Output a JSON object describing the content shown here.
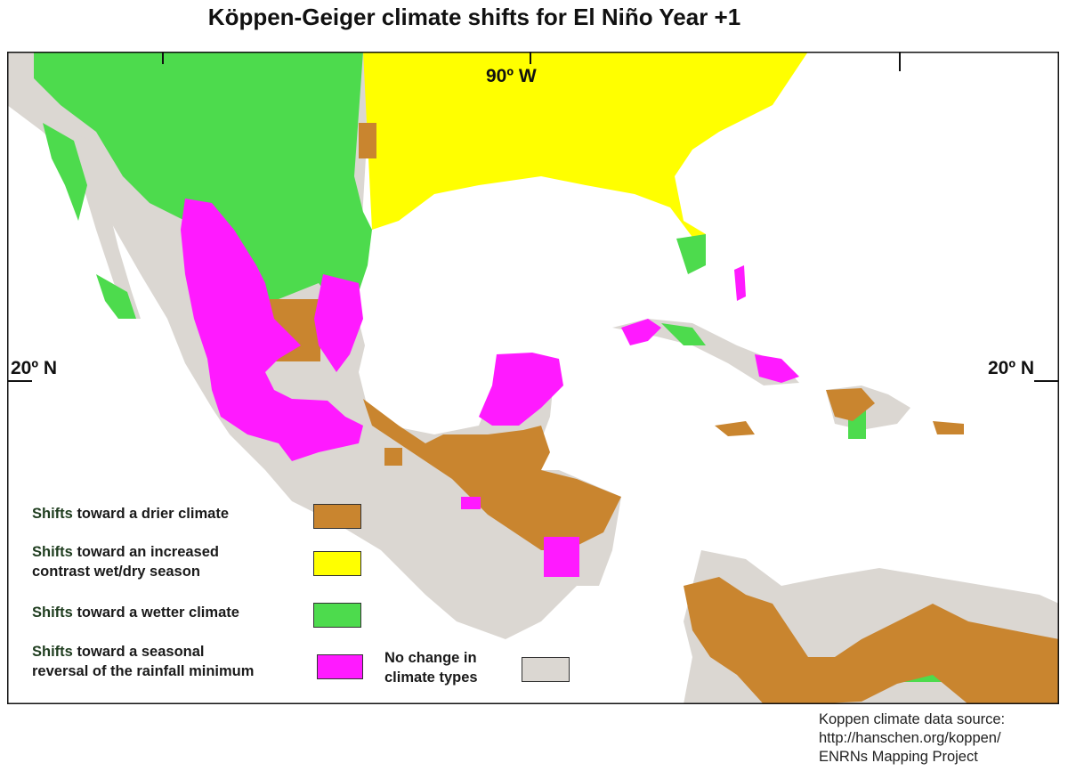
{
  "title": "Köppen-Geiger climate shifts for El Niño Year +1",
  "graticule": {
    "meridian_label": "90º W",
    "parallel_label_left": "20º N",
    "parallel_label_right": "20º N"
  },
  "legend": {
    "items": [
      {
        "key_word": "Shifts",
        "lines": [
          "toward a drier climate"
        ],
        "color": "#c9852f"
      },
      {
        "key_word": "Shifts",
        "lines": [
          "toward an increased",
          "contrast wet/dry season"
        ],
        "color": "#ffff00"
      },
      {
        "key_word": "Shifts",
        "lines": [
          "toward a wetter climate"
        ],
        "color": "#4ddb4d"
      },
      {
        "key_word": "Shifts",
        "lines": [
          "toward a seasonal",
          "reversal of the rainfall minimum"
        ],
        "color": "#ff1aff"
      }
    ],
    "no_change": {
      "lines": [
        "No change in",
        "climate types"
      ],
      "color": "#dbd7d2"
    }
  },
  "source": {
    "line1": "Koppen climate data source:",
    "line2": "http://hanschen.org/koppen/",
    "line3": "ENRNs Mapping Project"
  },
  "colors": {
    "drier": "#c9852f",
    "wet_dry_contrast": "#ffff00",
    "wetter": "#4ddb4d",
    "seasonal_reversal": "#ff1aff",
    "no_change": "#dbd7d2",
    "water": "#ffffff"
  }
}
